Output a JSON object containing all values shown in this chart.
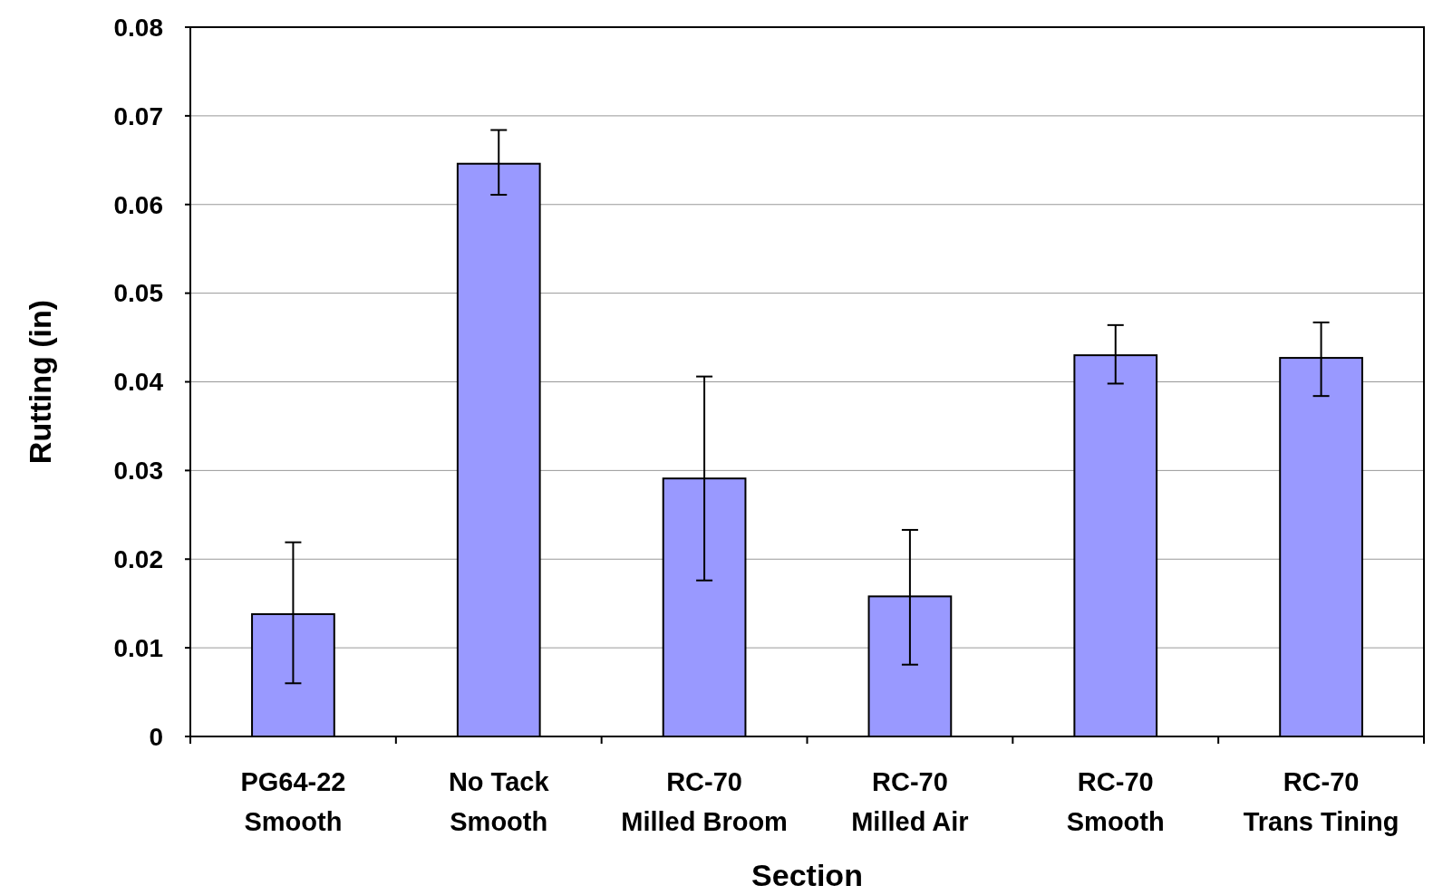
{
  "chart_data": {
    "type": "bar",
    "xlabel": "Section",
    "ylabel": "Rutting (in)",
    "categories": [
      "PG64-22\nSmooth",
      "No Tack\nSmooth",
      "RC-70\nMilled Broom",
      "RC-70\nMilled Air",
      "RC-70\nSmooth",
      "RC-70\nTrans Tining"
    ],
    "values": [
      0.0138,
      0.0646,
      0.0291,
      0.0158,
      0.043,
      0.0427
    ],
    "errors": [
      [
        0.006,
        0.0219
      ],
      [
        0.0611,
        0.0684
      ],
      [
        0.0176,
        0.0406
      ],
      [
        0.0081,
        0.0233
      ],
      [
        0.0398,
        0.0464
      ],
      [
        0.0384,
        0.0467
      ]
    ],
    "color": "#9999ff",
    "ylim": [
      0,
      0.08
    ],
    "yticks": [
      0,
      0.01,
      0.02,
      0.03,
      0.04,
      0.05,
      0.06,
      0.07,
      0.08
    ],
    "grid": "y"
  }
}
